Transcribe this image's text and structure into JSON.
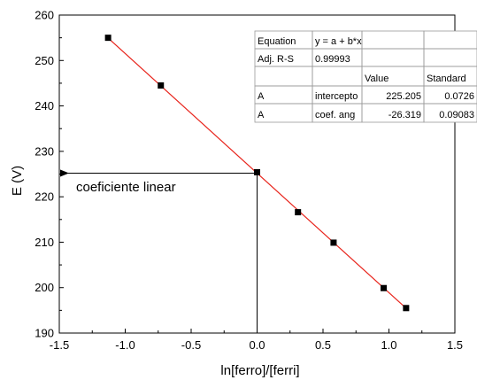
{
  "chart_data": {
    "type": "scatter",
    "xlabel": "ln[ferro]/[ferri]",
    "ylabel": "E (V)",
    "xlim": [
      -1.5,
      1.5
    ],
    "ylim": [
      190,
      260
    ],
    "xticks": [
      "-1.5",
      "-1.0",
      "-0.5",
      "0.0",
      "0.5",
      "1.0",
      "1.5"
    ],
    "xtick_values": [
      -1.5,
      -1.0,
      -0.5,
      0.0,
      0.5,
      1.0,
      1.5
    ],
    "yticks": [
      "190",
      "200",
      "210",
      "220",
      "230",
      "240",
      "250",
      "260"
    ],
    "ytick_values": [
      190,
      200,
      210,
      220,
      230,
      240,
      250,
      260
    ],
    "points": [
      {
        "x": -1.13,
        "y": 255.0
      },
      {
        "x": -0.73,
        "y": 244.5
      },
      {
        "x": 0.0,
        "y": 225.4
      },
      {
        "x": 0.31,
        "y": 216.6
      },
      {
        "x": 0.58,
        "y": 209.9
      },
      {
        "x": 0.96,
        "y": 199.9
      },
      {
        "x": 1.13,
        "y": 195.5
      }
    ],
    "fit": {
      "intercept": 225.205,
      "slope": -26.319,
      "x_range": [
        -1.13,
        1.13
      ],
      "color": "#e8241c"
    },
    "annotation": {
      "text": "coeficiente linear",
      "x": 0.0,
      "y": 225.205
    },
    "fit_table": [
      [
        "Equation",
        "y = a + b*x",
        "",
        ""
      ],
      [
        "Adj. R-S",
        "0.99993",
        "",
        ""
      ],
      [
        "",
        "",
        "Value",
        "Standard"
      ],
      [
        "A",
        "intercepto",
        "225.205",
        "0.0726"
      ],
      [
        "A",
        "coef. ang",
        "-26.319",
        "0.09083"
      ]
    ],
    "grid": false,
    "marker_color": "#000000"
  }
}
